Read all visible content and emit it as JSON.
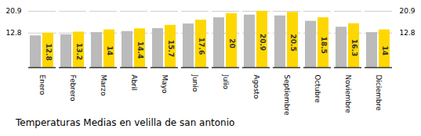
{
  "chart_data": {
    "type": "bar",
    "title": "Temperaturas Medias en velilla de san antonio",
    "categories": [
      "Enero",
      "Febrero",
      "Marzo",
      "Abril",
      "Mayo",
      "Junio",
      "Julio",
      "Agosto",
      "Septiembre",
      "Octubre",
      "Noviembre",
      "Diciembre"
    ],
    "series": [
      {
        "color": "#BBBBBB",
        "values": [
          11.8,
          12.2,
          13.0,
          13.4,
          14.5,
          16.2,
          18.5,
          19.5,
          19.2,
          17.2,
          15.0,
          13.0
        ]
      },
      {
        "color": "#FFD700",
        "values": [
          12.8,
          13.2,
          14.0,
          14.4,
          15.7,
          17.6,
          20.0,
          20.9,
          20.5,
          18.5,
          16.3,
          14.0
        ],
        "data_labels": true
      }
    ],
    "ylim": [
      0,
      22.6
    ],
    "yticks": [
      12.8,
      20.9
    ],
    "y2ticks": [
      12.8,
      20.9
    ],
    "grid": true
  }
}
